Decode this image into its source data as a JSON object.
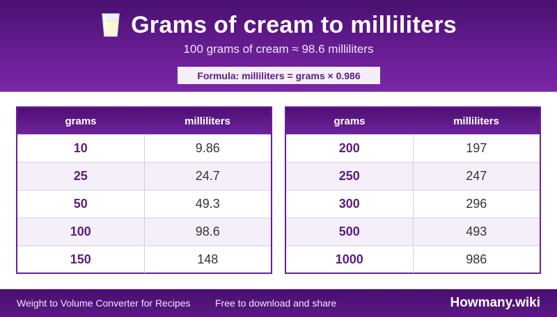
{
  "header": {
    "icon": "milk-glass-icon",
    "title": "Grams of cream to milliliters",
    "subtitle": "100 grams of cream ≈ 98.6 milliliters",
    "formula": "Formula: milliliters = grams × 0.986"
  },
  "tables": [
    {
      "col_grams": "grams",
      "col_ml": "milliliters",
      "rows": [
        {
          "grams": "10",
          "ml": "9.86"
        },
        {
          "grams": "25",
          "ml": "24.7"
        },
        {
          "grams": "50",
          "ml": "49.3"
        },
        {
          "grams": "100",
          "ml": "98.6"
        },
        {
          "grams": "150",
          "ml": "148"
        }
      ]
    },
    {
      "col_grams": "grams",
      "col_ml": "milliliters",
      "rows": [
        {
          "grams": "200",
          "ml": "197"
        },
        {
          "grams": "250",
          "ml": "247"
        },
        {
          "grams": "300",
          "ml": "296"
        },
        {
          "grams": "500",
          "ml": "493"
        },
        {
          "grams": "1000",
          "ml": "986"
        }
      ]
    }
  ],
  "footer": {
    "left": "Weight to Volume Converter for Recipes",
    "middle": "Free to download and share",
    "brand": "Howmany.wiki"
  },
  "colors": {
    "accent": "#6a1f96",
    "header_dark": "#4a0f70",
    "row_alt": "#f5effa"
  }
}
